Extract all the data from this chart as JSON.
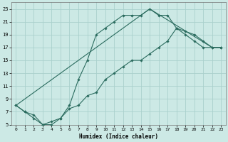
{
  "title": "",
  "xlabel": "Humidex (Indice chaleur)",
  "bg_color": "#cce9e5",
  "grid_color": "#aad0cc",
  "line_color": "#2a6b5e",
  "xlim": [
    -0.5,
    23.5
  ],
  "ylim": [
    5,
    24
  ],
  "xticks": [
    0,
    1,
    2,
    3,
    4,
    5,
    6,
    7,
    8,
    9,
    10,
    11,
    12,
    13,
    14,
    15,
    16,
    17,
    18,
    19,
    20,
    21,
    22,
    23
  ],
  "yticks": [
    5,
    7,
    9,
    11,
    13,
    15,
    17,
    19,
    21,
    23
  ],
  "line1_x": [
    0,
    1,
    2,
    3,
    4,
    5,
    6,
    7,
    8,
    9,
    10,
    11,
    12,
    13,
    14,
    15,
    16,
    17,
    18,
    19,
    20,
    21,
    22,
    23
  ],
  "line1_y": [
    8,
    7,
    6,
    5,
    5,
    6,
    8,
    12,
    15,
    19,
    20,
    21,
    22,
    22,
    22,
    23,
    22,
    22,
    20,
    19.5,
    19,
    18,
    17,
    17
  ],
  "line2_x": [
    0,
    1,
    2,
    3,
    4,
    5,
    6,
    7,
    8,
    9,
    10,
    11,
    12,
    13,
    14,
    15,
    16,
    17,
    18,
    19,
    20,
    21,
    22,
    23
  ],
  "line2_y": [
    8,
    7,
    6.5,
    5,
    5.5,
    6,
    7.5,
    8,
    9.5,
    10,
    12,
    13,
    14,
    15,
    15,
    16,
    17,
    18,
    20,
    19,
    18,
    17,
    17,
    17
  ],
  "line3_x": [
    0,
    15,
    22,
    23
  ],
  "line3_y": [
    8,
    23,
    17,
    17
  ]
}
